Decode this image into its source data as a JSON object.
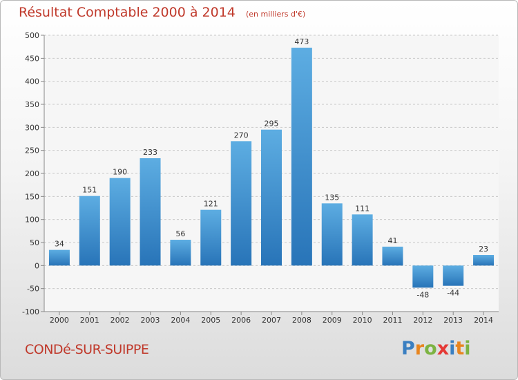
{
  "header": {
    "title": "Résultat Comptable 2000 à 2014",
    "unit": "(en milliers d'€)"
  },
  "footer": {
    "commune": "CONDé-SUR-SUIPPE",
    "logo": {
      "letters": [
        "P",
        "r",
        "o",
        "x",
        "i",
        "t",
        "i"
      ],
      "colors": [
        "#3a7fc1",
        "#e8851e",
        "#7cb342",
        "#e53935",
        "#3a7fc1",
        "#e8851e",
        "#7cb342"
      ]
    }
  },
  "chart_data": {
    "type": "bar",
    "title": "Résultat Comptable 2000 à 2014",
    "subtitle": "(en milliers d'€)",
    "categories": [
      "2000",
      "2001",
      "2002",
      "2003",
      "2004",
      "2005",
      "2006",
      "2007",
      "2008",
      "2009",
      "2010",
      "2011",
      "2012",
      "2013",
      "2014"
    ],
    "values": [
      34,
      151,
      190,
      233,
      56,
      121,
      270,
      295,
      473,
      135,
      111,
      41,
      -48,
      -44,
      23
    ],
    "value_labels": [
      "34",
      "151",
      "190",
      "233",
      "56",
      "121",
      "270",
      "295",
      "473",
      "135",
      "111",
      "41",
      "-48",
      "-44",
      "23"
    ],
    "ylim": [
      -100,
      500
    ],
    "yticks": [
      -100,
      -50,
      0,
      50,
      100,
      150,
      200,
      250,
      300,
      350,
      400,
      450,
      500
    ],
    "ytick_labels": [
      "-100",
      "-50",
      "0",
      "50",
      "100",
      "150",
      "200",
      "250",
      "300",
      "350",
      "400",
      "450",
      "500"
    ],
    "grid": true,
    "colors": {
      "bar_light": "#5dade2",
      "bar_dark": "#2874b8",
      "grid": "#c8c8c8"
    }
  }
}
